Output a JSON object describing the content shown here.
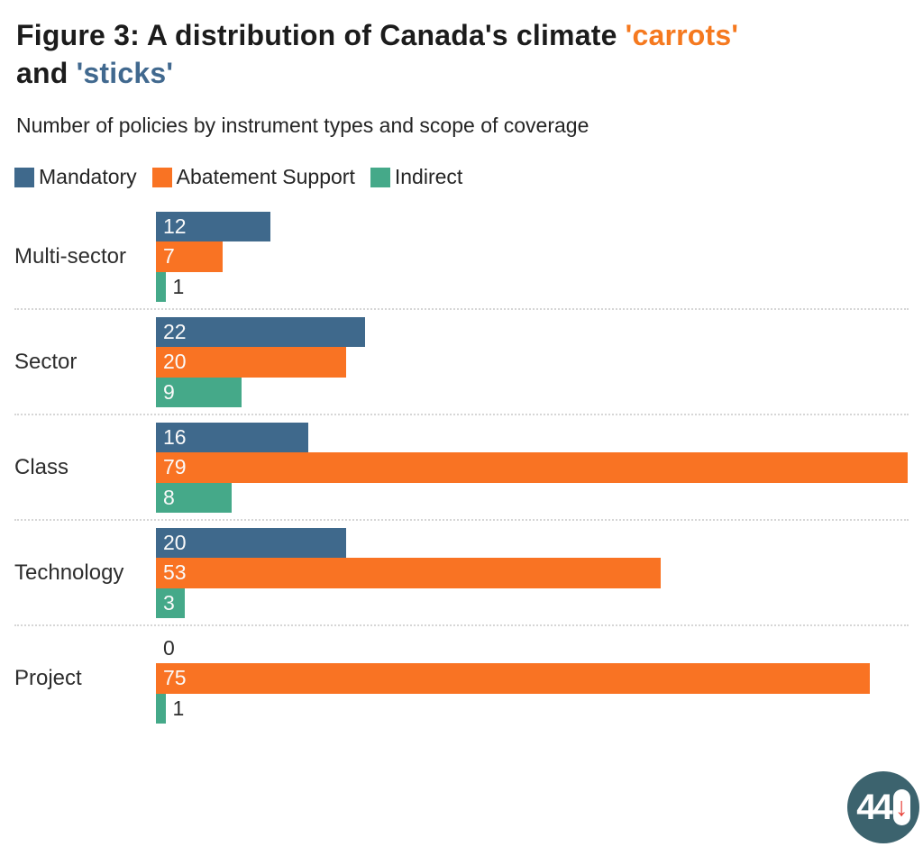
{
  "title": {
    "prefix": "Figure 3: A distribution of Canada's climate ",
    "carrots": "'carrots'",
    "and_word": "and ",
    "sticks": "'sticks'"
  },
  "subtitle": "Number of policies by instrument types and scope of coverage",
  "legend": {
    "items": [
      {
        "label": "Mandatory",
        "color": "#3F698C"
      },
      {
        "label": "Abatement Support",
        "color": "#F97323"
      },
      {
        "label": "Indirect",
        "color": "#45A989"
      }
    ]
  },
  "colors": {
    "mandatory_blue": "#3F698C",
    "abatement_orange": "#F97323",
    "indirect_green": "#45A989",
    "title_carrots_orange": "#F5791F",
    "title_sticks_blue": "#41698F",
    "separator_gray": "#D6D6D6",
    "logo_circle_teal": "#3C636E",
    "logo_arrow_red": "#E8433A"
  },
  "chart_data": {
    "type": "bar",
    "orientation": "horizontal",
    "title": "Figure 3: A distribution of Canada's climate 'carrots' and 'sticks'",
    "subtitle": "Number of policies by instrument types and scope of coverage",
    "categories": [
      "Multi-sector",
      "Sector",
      "Class",
      "Technology",
      "Project"
    ],
    "series": [
      {
        "name": "Mandatory",
        "color": "#3F698C",
        "values": [
          12,
          22,
          16,
          20,
          0
        ]
      },
      {
        "name": "Abatement Support",
        "color": "#F97323",
        "values": [
          7,
          20,
          79,
          53,
          75
        ]
      },
      {
        "name": "Indirect",
        "color": "#45A989",
        "values": [
          1,
          9,
          8,
          3,
          1
        ]
      }
    ],
    "xlabel": "",
    "ylabel": "",
    "xlim": [
      0,
      79
    ],
    "value_labels": true,
    "grid": false,
    "legend_position": "top"
  },
  "logo": {
    "fortyfour": "44",
    "arrow": "↓"
  }
}
